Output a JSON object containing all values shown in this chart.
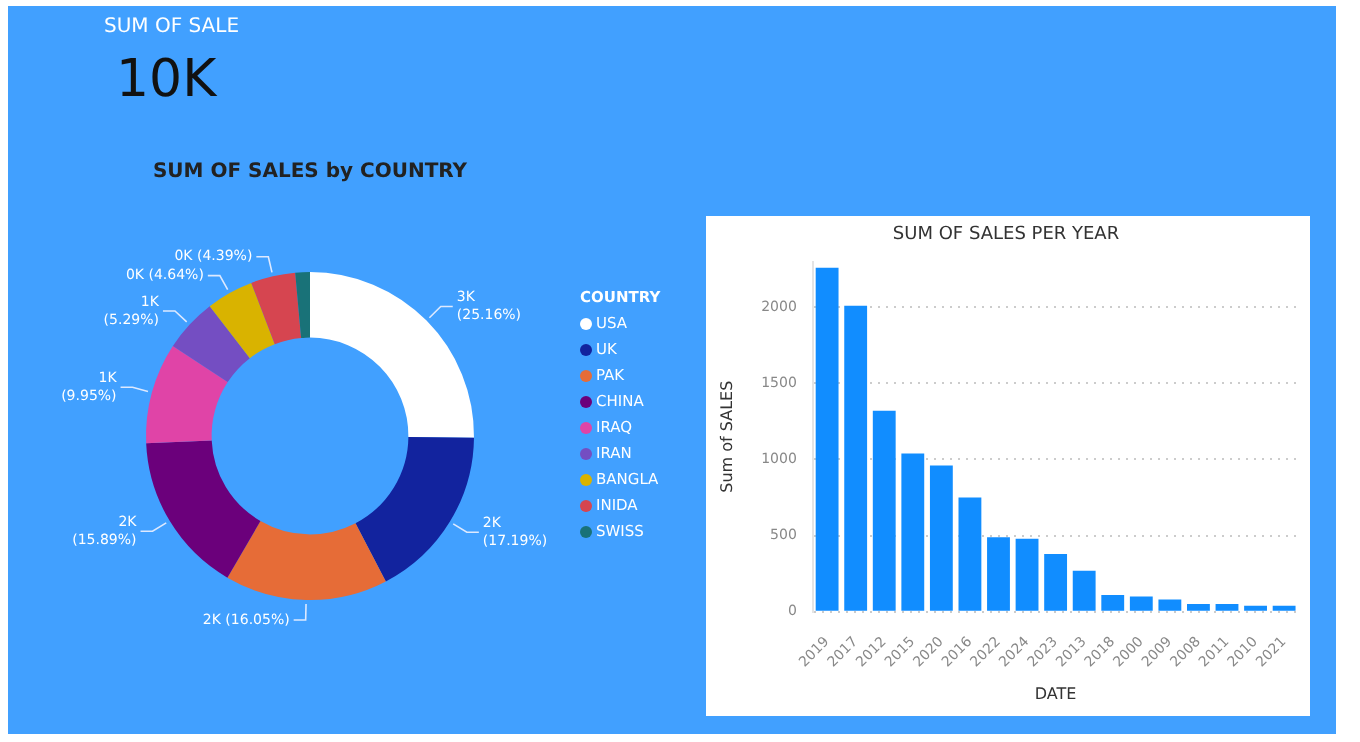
{
  "chart_data": [
    {
      "type": "other",
      "title": "SUM OF SALE",
      "annotations": [
        "10K"
      ]
    },
    {
      "type": "donut",
      "title": "SUM OF SALES by COUNTRY",
      "legend_title": "COUNTRY",
      "legend": "right",
      "categories": [
        "USA",
        "UK",
        "PAK",
        "CHINA",
        "IRAQ",
        "IRAN",
        "BANGLA",
        "INIDA",
        "SWISS"
      ],
      "values": [
        25.16,
        17.19,
        16.05,
        15.89,
        9.95,
        5.29,
        4.64,
        4.39,
        1.44
      ],
      "colors": [
        "#ffffff",
        "#12239e",
        "#e66c37",
        "#6b007b",
        "#e044a7",
        "#744ec2",
        "#d9b300",
        "#d64550",
        "#197278"
      ],
      "value_labels": [
        "3K (25.16%)",
        "2K (17.19%)",
        "2K (16.05%)",
        "2K (15.89%)",
        "1K (9.95%)",
        "1K (5.29%)",
        "0K (4.64%)",
        "0K (4.39%)",
        null
      ]
    },
    {
      "type": "bar",
      "title": "SUM OF SALES PER YEAR",
      "xlabel": "DATE",
      "ylabel": "Sum of SALES",
      "categories": [
        "2019",
        "2017",
        "2012",
        "2015",
        "2020",
        "2016",
        "2022",
        "2024",
        "2023",
        "2013",
        "2018",
        "2000",
        "2009",
        "2008",
        "2011",
        "2010",
        "2021"
      ],
      "values": [
        2260,
        2010,
        1320,
        1040,
        960,
        750,
        490,
        480,
        380,
        270,
        110,
        100,
        80,
        50,
        50,
        40,
        40
      ],
      "color": "#118dff",
      "ylim": [
        0,
        2300
      ],
      "yticks": [
        0,
        500,
        1000,
        1500,
        2000
      ],
      "grid": "y"
    }
  ]
}
